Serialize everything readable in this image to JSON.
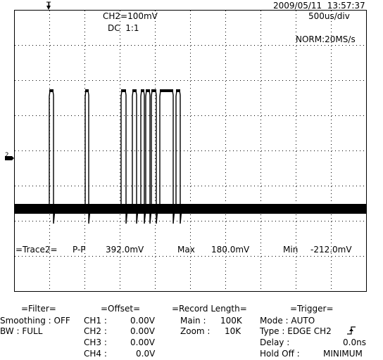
{
  "header": {
    "datetime": "2009/05/11  13:57:37",
    "channel_scale": "CH2=100mV",
    "coupling": "DC  1:1",
    "timebase": "500us/div",
    "acq_mode": "NORM:20MS/s"
  },
  "markers": {
    "trigger_pos": "T",
    "ch2_ground": "2"
  },
  "measurement": {
    "label": "=Trace2=",
    "pp_label": "P-P",
    "pp_value": "392.0mV",
    "max_label": "Max",
    "max_value": "180.0mV",
    "min_label": "Min",
    "min_value": "-212.0mV"
  },
  "filter": {
    "title": "=Filter=",
    "smoothing": "Smoothing : OFF",
    "bw": "BW : FULL"
  },
  "offset": {
    "title": "=Offset=",
    "rows": [
      {
        "label": "CH1 :",
        "value": "0.00V"
      },
      {
        "label": "CH2 :",
        "value": "0.00V"
      },
      {
        "label": "CH3 :",
        "value": "0.00V"
      },
      {
        "label": "CH4 :",
        "value": "0.0V"
      }
    ]
  },
  "record": {
    "title": "=Record Length=",
    "main_label": "Main :",
    "main_value": "100K",
    "zoom_label": "Zoom :",
    "zoom_value": "10K"
  },
  "trigger": {
    "title": "=Trigger=",
    "mode": "Mode : AUTO",
    "type": "Type : EDGE CH2",
    "delay_label": "Delay :",
    "delay_value": "0.0ns",
    "holdoff_label": "Hold Off :",
    "holdoff_value": "MINIMUM"
  },
  "colors": {
    "trace": "#000000",
    "grid": "#000000",
    "background": "#ffffff"
  }
}
